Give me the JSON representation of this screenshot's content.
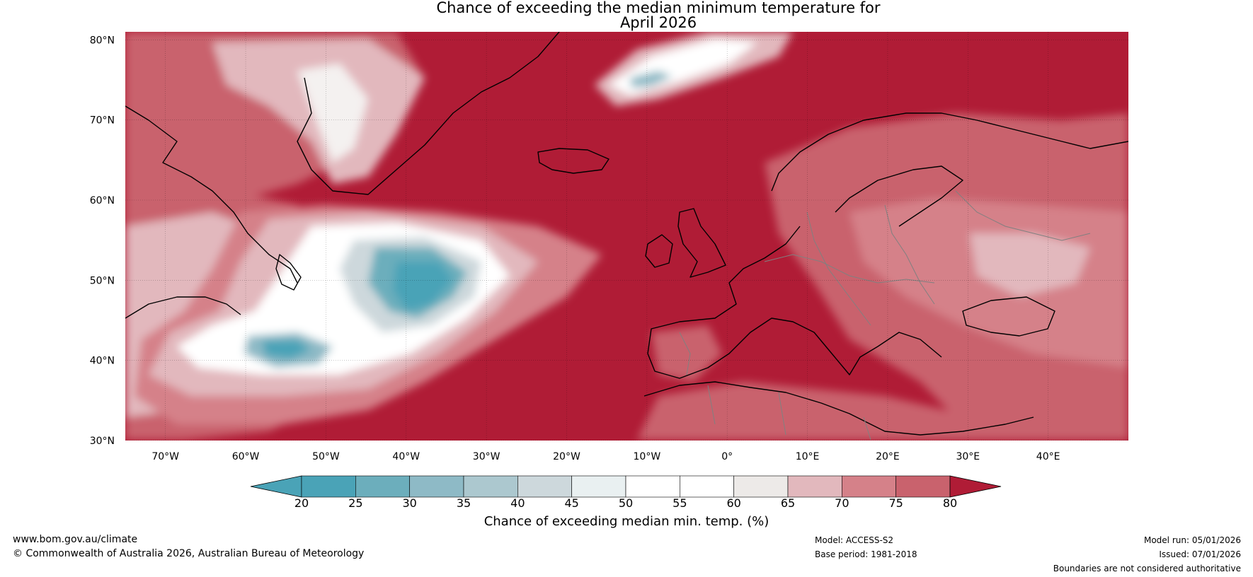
{
  "title": {
    "line1": "Chance of exceeding the median minimum temperature for",
    "line2": "April 2026"
  },
  "map": {
    "lat_ticks": [
      "80°N",
      "70°N",
      "60°N",
      "50°N",
      "40°N",
      "30°N"
    ],
    "lon_ticks": [
      "70°W",
      "60°W",
      "50°W",
      "40°W",
      "30°W",
      "20°W",
      "10°W",
      "0°",
      "10°E",
      "20°E",
      "30°E",
      "40°E"
    ],
    "lat_range": [
      30,
      81
    ],
    "lon_range": [
      -75,
      50
    ]
  },
  "colorbar": {
    "labels": [
      "20",
      "25",
      "30",
      "35",
      "40",
      "45",
      "50",
      "55",
      "60",
      "65",
      "70",
      "75",
      "80"
    ],
    "colors": [
      "#4aa3b7",
      "#6caebc",
      "#8ebac6",
      "#acc8cf",
      "#cdd8dc",
      "#e9f0f1",
      "#ffffff",
      "#ffffff",
      "#edeae8",
      "#e2b8bd",
      "#d58189",
      "#c9626d",
      "#bd4353"
    ],
    "under_color": "#4aa3b7",
    "over_color": "#b01c36",
    "title": "Chance of exceeding median min. temp. (%)"
  },
  "footer": {
    "website": "www.bom.gov.au/climate",
    "copyright": "© Commonwealth of Australia 2026, Australian Bureau of Meteorology",
    "model": "Model: ACCESS-S2",
    "base_period": "Base period: 1981-2018",
    "model_run": "Model run: 05/01/2026",
    "issued": "Issued: 07/01/2026",
    "disclaimer": "Boundaries are not considered authoritative"
  }
}
